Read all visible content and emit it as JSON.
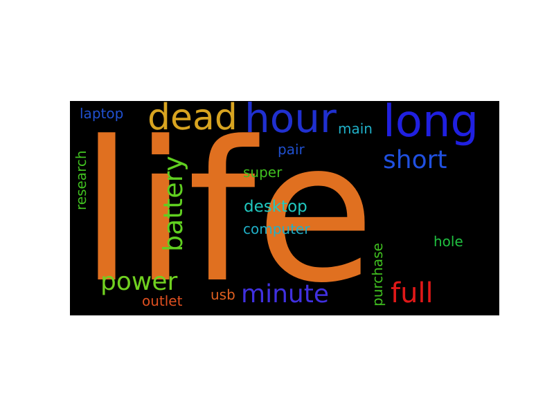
{
  "words": [
    {
      "text": "life",
      "color": "#e07020"
    },
    {
      "text": "long",
      "color": "#2020e0"
    },
    {
      "text": "hour",
      "color": "#2030d0"
    },
    {
      "text": "dead",
      "color": "#d8a420"
    },
    {
      "text": "short",
      "color": "#2050e0"
    },
    {
      "text": "battery",
      "color": "#60d020"
    },
    {
      "text": "power",
      "color": "#70d020"
    },
    {
      "text": "minute",
      "color": "#4030e0"
    },
    {
      "text": "full",
      "color": "#e01818"
    },
    {
      "text": "desktop",
      "color": "#20c8c0"
    },
    {
      "text": "computer",
      "color": "#20b0c8"
    },
    {
      "text": "laptop",
      "color": "#2050d0"
    },
    {
      "text": "main",
      "color": "#20b0c8"
    },
    {
      "text": "pair",
      "color": "#2050d0"
    },
    {
      "text": "super",
      "color": "#40c020"
    },
    {
      "text": "research",
      "color": "#40c020"
    },
    {
      "text": "purchase",
      "color": "#40c020"
    },
    {
      "text": "hole",
      "color": "#20c040"
    },
    {
      "text": "usb",
      "color": "#e06020"
    },
    {
      "text": "outlet",
      "color": "#e05020"
    }
  ]
}
